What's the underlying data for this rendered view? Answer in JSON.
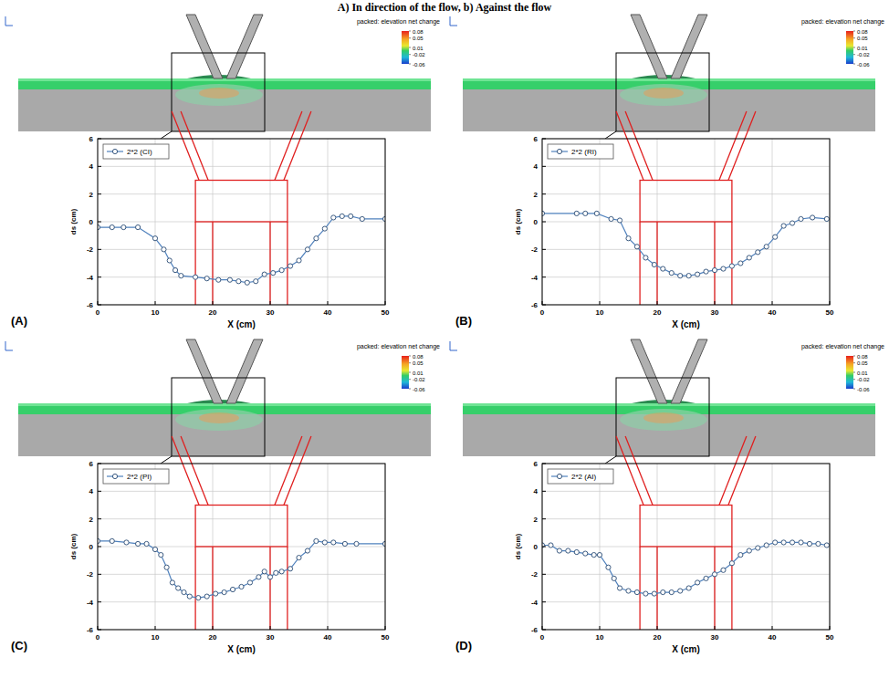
{
  "caption": "A) In direction of the flow, b) Against the flow",
  "chart_data": [
    {
      "type": "line",
      "title": "(A)",
      "x_label": "X (cm)",
      "y_label": "ds (cm)",
      "xlim": [
        0,
        50
      ],
      "ylim": [
        -6,
        6
      ],
      "xticks": [
        0,
        10,
        20,
        30,
        40,
        50
      ],
      "yticks": [
        -6,
        -4,
        -2,
        0,
        2,
        4,
        6
      ],
      "grid": true,
      "legend": "top-left",
      "colorbar": {
        "label": "packed: elevation net change",
        "range": [
          -0.06,
          0.08
        ],
        "ticks": [
          0.08,
          0.05,
          0.01,
          -0.02,
          -0.06
        ]
      },
      "pier": {
        "cap_x": [
          17,
          33
        ],
        "cap_y": [
          0,
          3
        ],
        "piles_x": [
          17,
          20,
          30,
          33
        ]
      },
      "x": [
        0,
        2.5,
        4.5,
        7,
        10,
        11.5,
        12.5,
        13.5,
        14.5,
        17,
        19,
        21,
        23,
        24.5,
        26,
        27.5,
        29,
        30.5,
        32,
        33.5,
        35,
        36.5,
        38,
        39.5,
        41,
        42.5,
        44,
        46,
        50
      ],
      "series": [
        {
          "name": "2*2 (CI)",
          "color": "#4f81bd",
          "marker": "circle",
          "line_style": "solid",
          "values": [
            -0.4,
            -0.4,
            -0.4,
            -0.4,
            -1.2,
            -2.0,
            -2.8,
            -3.5,
            -3.9,
            -4.0,
            -4.1,
            -4.2,
            -4.2,
            -4.3,
            -4.4,
            -4.3,
            -3.8,
            -3.7,
            -3.5,
            -3.2,
            -2.8,
            -2.0,
            -1.2,
            -0.5,
            0.3,
            0.4,
            0.4,
            0.2,
            0.2
          ]
        }
      ]
    },
    {
      "type": "line",
      "title": "(B)",
      "x_label": "X (cm)",
      "y_label": "ds (cm)",
      "xlim": [
        0,
        50
      ],
      "ylim": [
        -6,
        6
      ],
      "xticks": [
        0,
        10,
        20,
        30,
        40,
        50
      ],
      "yticks": [
        -6,
        -4,
        -2,
        0,
        2,
        4,
        6
      ],
      "grid": true,
      "legend": "top-left",
      "colorbar": {
        "label": "packed: elevation net change",
        "range": [
          -0.06,
          0.08
        ],
        "ticks": [
          0.08,
          0.05,
          0.01,
          -0.02,
          -0.06
        ]
      },
      "pier": {
        "cap_x": [
          17,
          33
        ],
        "cap_y": [
          0,
          3
        ],
        "piles_x": [
          17,
          20,
          30,
          33
        ]
      },
      "x": [
        0,
        6,
        7.5,
        9.5,
        12,
        13.5,
        15,
        16.5,
        18,
        19.5,
        21,
        22.5,
        24,
        25.5,
        27,
        28.5,
        30,
        31.5,
        33,
        34.5,
        36,
        37.5,
        39,
        40.5,
        42,
        43.5,
        45,
        47,
        49.5
      ],
      "series": [
        {
          "name": "2*2 (RI)",
          "color": "#4f81bd",
          "marker": "circle",
          "line_style": "solid",
          "values": [
            0.6,
            0.6,
            0.6,
            0.6,
            0.2,
            0.1,
            -1.2,
            -1.8,
            -2.6,
            -3.1,
            -3.4,
            -3.7,
            -3.9,
            -3.9,
            -3.8,
            -3.6,
            -3.5,
            -3.4,
            -3.2,
            -3.0,
            -2.6,
            -2.2,
            -1.8,
            -1.1,
            -0.3,
            -0.1,
            0.2,
            0.3,
            0.2
          ]
        }
      ]
    },
    {
      "type": "line",
      "title": "(C)",
      "x_label": "X (cm)",
      "y_label": "ds (cm)",
      "xlim": [
        0,
        50
      ],
      "ylim": [
        -6,
        6
      ],
      "xticks": [
        0,
        10,
        20,
        30,
        40,
        50
      ],
      "yticks": [
        -6,
        -4,
        -2,
        0,
        2,
        4,
        6
      ],
      "grid": true,
      "legend": "top-left",
      "colorbar": {
        "label": "packed: elevation net change",
        "range": [
          -0.06,
          0.08
        ],
        "ticks": [
          0.08,
          0.05,
          0.01,
          -0.02,
          -0.06
        ]
      },
      "pier": {
        "cap_x": [
          17,
          33
        ],
        "cap_y": [
          0,
          3
        ],
        "piles_x": [
          17,
          20,
          30,
          33
        ]
      },
      "x": [
        0,
        2.5,
        5,
        7,
        8.5,
        10,
        11,
        12,
        13,
        14,
        15,
        16,
        17.5,
        19,
        20.5,
        22,
        23.5,
        25,
        26.5,
        28,
        29,
        30,
        31,
        32,
        33.5,
        35,
        36.5,
        38,
        39.5,
        41,
        43,
        45,
        50
      ],
      "series": [
        {
          "name": "2*2 (PI)",
          "color": "#4f81bd",
          "marker": "circle",
          "line_style": "solid",
          "values": [
            0.4,
            0.4,
            0.3,
            0.2,
            0.2,
            -0.2,
            -0.6,
            -1.5,
            -2.6,
            -3.0,
            -3.3,
            -3.6,
            -3.7,
            -3.6,
            -3.4,
            -3.3,
            -3.1,
            -2.9,
            -2.6,
            -2.2,
            -1.8,
            -2.2,
            -1.9,
            -1.8,
            -1.6,
            -0.8,
            -0.3,
            0.4,
            0.3,
            0.3,
            0.2,
            0.2,
            0.2
          ]
        }
      ]
    },
    {
      "type": "line",
      "title": "(D)",
      "x_label": "X (cm)",
      "y_label": "ds (cm)",
      "xlim": [
        0,
        50
      ],
      "ylim": [
        -6,
        6
      ],
      "xticks": [
        0,
        10,
        20,
        30,
        40,
        50
      ],
      "yticks": [
        -6,
        -4,
        -2,
        0,
        2,
        4,
        6
      ],
      "grid": true,
      "legend": "top-left",
      "colorbar": {
        "label": "packed: elevation net change",
        "range": [
          -0.06,
          0.08
        ],
        "ticks": [
          0.08,
          0.05,
          0.01,
          -0.02,
          -0.06
        ]
      },
      "pier": {
        "cap_x": [
          17,
          33
        ],
        "cap_y": [
          0,
          3
        ],
        "piles_x": [
          17,
          20,
          30,
          33
        ]
      },
      "x": [
        0,
        1.5,
        3,
        4.5,
        6,
        7.5,
        9,
        10,
        11.5,
        12.5,
        13.5,
        15,
        16.5,
        18,
        19.5,
        21,
        22.5,
        24,
        25.5,
        27,
        28.5,
        30,
        31.5,
        33,
        34.5,
        36,
        37.5,
        39,
        40.5,
        42,
        43.5,
        45,
        46.5,
        48,
        49.5
      ],
      "series": [
        {
          "name": "2*2 (AI)",
          "color": "#4f81bd",
          "marker": "circle",
          "line_style": "solid",
          "values": [
            0.1,
            0.1,
            -0.3,
            -0.3,
            -0.4,
            -0.5,
            -0.6,
            -0.6,
            -1.5,
            -2.3,
            -3.0,
            -3.2,
            -3.3,
            -3.4,
            -3.4,
            -3.3,
            -3.3,
            -3.2,
            -3.0,
            -2.6,
            -2.3,
            -2.0,
            -1.7,
            -1.2,
            -0.6,
            -0.3,
            -0.1,
            0.1,
            0.3,
            0.3,
            0.3,
            0.3,
            0.2,
            0.2,
            0.1
          ]
        }
      ]
    }
  ]
}
